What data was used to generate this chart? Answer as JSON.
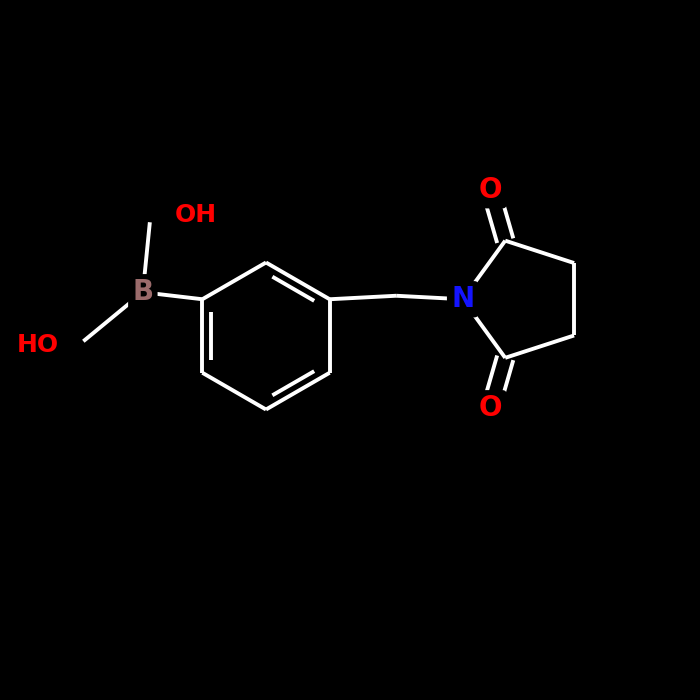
{
  "background_color": "#000000",
  "bond_color": "#ffffff",
  "atom_colors": {
    "B": "#9b6b6b",
    "N": "#1414ff",
    "O": "#ff0000",
    "C": "#ffffff"
  },
  "bond_width": 2.8,
  "font_size_atoms": 18,
  "figsize": [
    7.0,
    7.0
  ],
  "dpi": 100,
  "xlim": [
    0,
    10
  ],
  "ylim": [
    0,
    10
  ]
}
